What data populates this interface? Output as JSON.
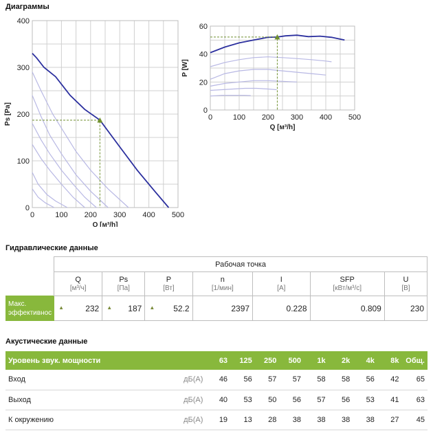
{
  "sections": {
    "diagrams_title": "Диаграммы",
    "hydraulic_title": "Гидравлические данные",
    "acoustic_title": "Акустические данные"
  },
  "chart_data": [
    {
      "type": "line",
      "title": "",
      "xlabel": "Q [м³/h]",
      "ylabel": "Ps [Pa]",
      "xlim": [
        0,
        500
      ],
      "ylim": [
        0,
        400
      ],
      "xticks": [
        0,
        100,
        200,
        300,
        400,
        500
      ],
      "yticks": [
        0,
        100,
        200,
        300,
        400
      ],
      "grid": true,
      "series": [
        {
          "values": [
            [
              0,
              330
            ],
            [
              15,
              320
            ],
            [
              40,
              300
            ],
            [
              80,
              280
            ],
            [
              130,
              240
            ],
            [
              180,
              210
            ],
            [
              232,
              187
            ],
            [
              300,
              130
            ],
            [
              360,
              80
            ],
            [
              420,
              35
            ],
            [
              468,
              0
            ]
          ],
          "color": "#2b2f9e"
        },
        {
          "values": [
            [
              0,
              290
            ],
            [
              30,
              250
            ],
            [
              70,
              200
            ],
            [
              110,
              160
            ],
            [
              150,
              120
            ],
            [
              200,
              80
            ],
            [
              260,
              40
            ],
            [
              330,
              0
            ]
          ],
          "color": "#b8b8e4"
        },
        {
          "values": [
            [
              0,
              240
            ],
            [
              30,
              195
            ],
            [
              60,
              155
            ],
            [
              100,
              115
            ],
            [
              150,
              70
            ],
            [
              200,
              35
            ],
            [
              260,
              0
            ]
          ],
          "color": "#b8b8e4"
        },
        {
          "values": [
            [
              0,
              180
            ],
            [
              30,
              145
            ],
            [
              60,
              115
            ],
            [
              100,
              80
            ],
            [
              140,
              50
            ],
            [
              180,
              22
            ],
            [
              220,
              0
            ]
          ],
          "color": "#b8b8e4"
        },
        {
          "values": [
            [
              0,
              135
            ],
            [
              30,
              105
            ],
            [
              60,
              80
            ],
            [
              100,
              50
            ],
            [
              140,
              22
            ],
            [
              180,
              0
            ]
          ],
          "color": "#b8b8e4"
        },
        {
          "values": [
            [
              0,
              75
            ],
            [
              20,
              50
            ],
            [
              50,
              28
            ],
            [
              80,
              14
            ],
            [
              120,
              0
            ]
          ],
          "color": "#b8b8e4"
        },
        {
          "values": [
            [
              0,
              40
            ],
            [
              20,
              22
            ],
            [
              45,
              10
            ],
            [
              75,
              0
            ]
          ],
          "color": "#b8b8e4"
        }
      ],
      "operating_point": {
        "x": 232,
        "y": 187
      }
    },
    {
      "type": "line",
      "title": "",
      "xlabel": "Q [м³/h]",
      "ylabel": "P [W]",
      "xlim": [
        0,
        500
      ],
      "ylim": [
        0,
        60
      ],
      "xticks": [
        0,
        100,
        200,
        300,
        400,
        500
      ],
      "yticks": [
        0,
        20,
        40,
        60
      ],
      "grid": true,
      "series": [
        {
          "values": [
            [
              0,
              41
            ],
            [
              50,
              45
            ],
            [
              100,
              48
            ],
            [
              150,
              50
            ],
            [
              200,
              52
            ],
            [
              232,
              52.2
            ],
            [
              260,
              53
            ],
            [
              300,
              53.5
            ],
            [
              340,
              52.5
            ],
            [
              380,
              52.8
            ],
            [
              420,
              52
            ],
            [
              465,
              50
            ]
          ],
          "color": "#2b2f9e"
        },
        {
          "values": [
            [
              0,
              31
            ],
            [
              50,
              34
            ],
            [
              100,
              36
            ],
            [
              150,
              37.5
            ],
            [
              200,
              38
            ],
            [
              250,
              37.5
            ],
            [
              300,
              36.8
            ],
            [
              350,
              36
            ],
            [
              400,
              35
            ],
            [
              420,
              34.5
            ]
          ],
          "color": "#b8b8e4"
        },
        {
          "values": [
            [
              0,
              22
            ],
            [
              50,
              26
            ],
            [
              100,
              28
            ],
            [
              150,
              29
            ],
            [
              200,
              29
            ],
            [
              250,
              28
            ],
            [
              300,
              27
            ],
            [
              350,
              26
            ],
            [
              400,
              25
            ]
          ],
          "color": "#b8b8e4"
        },
        {
          "values": [
            [
              0,
              17
            ],
            [
              50,
              19
            ],
            [
              100,
              20
            ],
            [
              150,
              21
            ],
            [
              200,
              21
            ],
            [
              250,
              20.5
            ],
            [
              300,
              20
            ]
          ],
          "color": "#b8b8e4"
        },
        {
          "values": [
            [
              0,
              14
            ],
            [
              40,
              14.5
            ],
            [
              80,
              15
            ],
            [
              120,
              15.5
            ],
            [
              160,
              15.5
            ],
            [
              200,
              15
            ],
            [
              230,
              14.5
            ]
          ],
          "color": "#b8b8e4"
        },
        {
          "values": [
            [
              0,
              10
            ],
            [
              40,
              10.5
            ],
            [
              80,
              10.5
            ],
            [
              120,
              10.5
            ],
            [
              140,
              10.3
            ]
          ],
          "color": "#b8b8e4"
        }
      ],
      "operating_point": {
        "x": 232,
        "y": 52.2
      }
    }
  ],
  "hydraulic": {
    "group_label": "Рабочая точка",
    "columns": [
      {
        "name": "Q",
        "unit": "[м³/ч]"
      },
      {
        "name": "Ps",
        "unit": "[Па]"
      },
      {
        "name": "P",
        "unit": "[Вт]"
      },
      {
        "name": "n",
        "unit": "[1/мин]"
      },
      {
        "name": "I",
        "unit": "[A]"
      },
      {
        "name": "SFP",
        "unit": "[кВт/м³/с]"
      },
      {
        "name": "U",
        "unit": "[В]"
      }
    ],
    "row_label": "Макс. эффективнос",
    "values": [
      "232",
      "187",
      "52.2",
      "2397",
      "0.228",
      "0.809",
      "230"
    ]
  },
  "acoustic": {
    "header_label": "Уровень звук. мощности",
    "bands": [
      "63",
      "125",
      "250",
      "500",
      "1k",
      "2k",
      "4k",
      "8k",
      "Общ."
    ],
    "rows": [
      {
        "label": "Вход",
        "unit": "дБ(А)",
        "values": [
          "46",
          "56",
          "57",
          "57",
          "58",
          "58",
          "56",
          "42",
          "65"
        ]
      },
      {
        "label": "Выход",
        "unit": "дБ(А)",
        "values": [
          "40",
          "53",
          "50",
          "56",
          "57",
          "56",
          "53",
          "41",
          "63"
        ]
      },
      {
        "label": "К окружению",
        "unit": "дБ(А)",
        "values": [
          "19",
          "13",
          "28",
          "38",
          "38",
          "38",
          "38",
          "27",
          "45"
        ]
      }
    ]
  },
  "colors": {
    "accent": "#88b83c",
    "main_curve": "#2b2f9e",
    "aux_curve": "#b8b8e4",
    "marker": "#6f8f2e"
  }
}
